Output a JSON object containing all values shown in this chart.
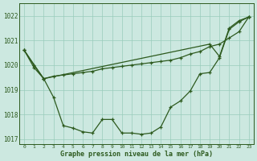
{
  "xlabel": "Graphe pression niveau de la mer (hPa)",
  "background_color": "#cce8e0",
  "line_color": "#2d5a1e",
  "grid_color": "#99ccbb",
  "xlim": [
    -0.5,
    23.5
  ],
  "ylim": [
    1016.8,
    1022.5
  ],
  "yticks": [
    1017,
    1018,
    1019,
    1020,
    1021,
    1022
  ],
  "xticks": [
    0,
    1,
    2,
    3,
    4,
    5,
    6,
    7,
    8,
    9,
    10,
    11,
    12,
    13,
    14,
    15,
    16,
    17,
    18,
    19,
    20,
    21,
    22,
    23
  ],
  "line1_x": [
    0,
    1,
    2,
    3,
    4,
    5,
    6,
    7,
    8,
    9,
    10,
    11,
    12,
    13,
    14,
    15,
    16,
    17,
    18,
    19,
    20,
    21,
    22,
    23
  ],
  "line1_y": [
    1020.6,
    1020.0,
    1019.45,
    1018.7,
    1017.55,
    1017.45,
    1017.3,
    1017.25,
    1017.8,
    1017.8,
    1017.25,
    1017.25,
    1017.2,
    1017.25,
    1017.5,
    1018.3,
    1018.55,
    1018.95,
    1019.65,
    1019.7,
    1020.3,
    1021.45,
    1021.75,
    1021.95
  ],
  "line2_x": [
    0,
    1,
    2,
    3,
    4,
    5,
    6,
    7,
    8,
    9,
    10,
    11,
    12,
    13,
    14,
    15,
    16,
    17,
    18,
    19,
    20,
    21,
    22,
    23
  ],
  "line2_y": [
    1020.6,
    1019.9,
    1019.45,
    1019.55,
    1019.6,
    1019.65,
    1019.7,
    1019.75,
    1019.85,
    1019.9,
    1019.95,
    1020.0,
    1020.05,
    1020.1,
    1020.15,
    1020.2,
    1020.3,
    1020.45,
    1020.55,
    1020.75,
    1020.85,
    1021.1,
    1021.35,
    1021.95
  ],
  "line3_x": [
    0,
    2,
    19,
    20,
    21,
    22,
    23
  ],
  "line3_y": [
    1020.6,
    1019.45,
    1020.85,
    1020.35,
    1021.5,
    1021.8,
    1021.95
  ]
}
